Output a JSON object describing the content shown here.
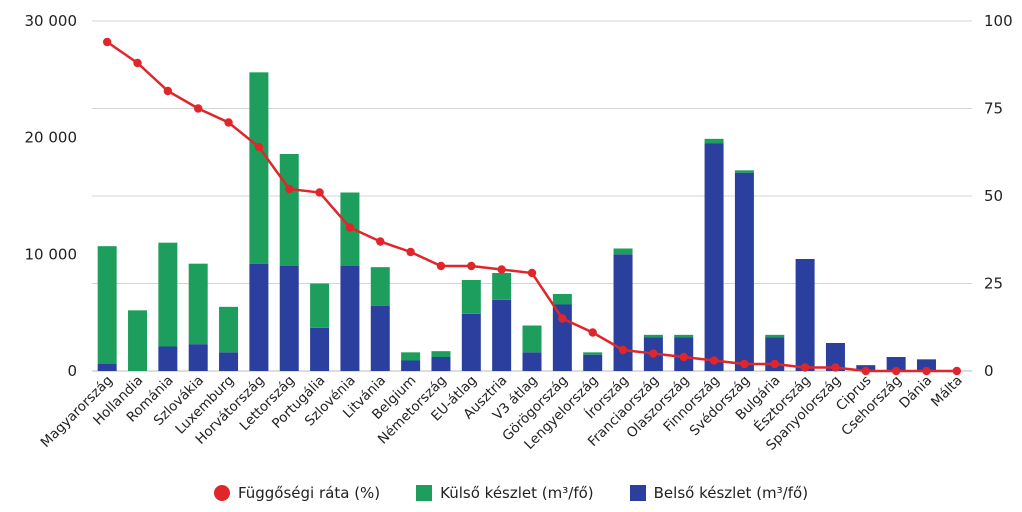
{
  "chart_data": {
    "type": "bar",
    "categories": [
      "Magyarország",
      "Hollandia",
      "Románia",
      "Szlovákia",
      "Luxemburg",
      "Horvátország",
      "Lettország",
      "Portugália",
      "Szlovénia",
      "Litvánia",
      "Belgium",
      "Németország",
      "EU-átlag",
      "Ausztria",
      "V3 átlag",
      "Görögország",
      "Lengyelország",
      "Írország",
      "Franciaország",
      "Olaszország",
      "Finnország",
      "Svédország",
      "Bulgária",
      "Észtország",
      "Spanyolország",
      "Ciprus",
      "Csehország",
      "Dánia",
      "Málta"
    ],
    "series": [
      {
        "name": "Belső készlet (m³/fő)",
        "kind": "bar",
        "axis": "left",
        "color": "#2b3f9e",
        "values": [
          600,
          0,
          2100,
          2300,
          1600,
          9200,
          9000,
          3700,
          9000,
          5600,
          900,
          1200,
          4900,
          6100,
          1600,
          5700,
          1400,
          10000,
          2900,
          2900,
          19500,
          17000,
          2900,
          9600,
          2400,
          500,
          1200,
          1000,
          0
        ]
      },
      {
        "name": "Külső készlet (m³/fő)",
        "kind": "bar",
        "axis": "left",
        "color": "#1e9e5c",
        "values": [
          10100,
          5200,
          8900,
          6900,
          3900,
          16400,
          9600,
          3800,
          6300,
          3300,
          700,
          500,
          2900,
          2300,
          2300,
          900,
          200,
          500,
          200,
          200,
          400,
          200,
          200,
          0,
          0,
          0,
          0,
          0,
          0
        ]
      },
      {
        "name": "Függőségi ráta (%)",
        "kind": "line",
        "axis": "right",
        "color": "#e0262a",
        "values": [
          94,
          88,
          80,
          75,
          71,
          64,
          52,
          51,
          41,
          37,
          34,
          30,
          30,
          29,
          28,
          15,
          11,
          6,
          5,
          4,
          3,
          2,
          2,
          1,
          1,
          0,
          0,
          0,
          0
        ]
      }
    ],
    "y_left": {
      "ticks": [
        "0",
        "10 000",
        "20 000",
        "30 000"
      ],
      "min": 0,
      "max": 30000
    },
    "y_right": {
      "ticks": [
        "0",
        "25",
        "50",
        "75",
        "100"
      ],
      "min": 0,
      "max": 100
    },
    "grid": true,
    "legend_position": "bottom"
  },
  "legend": {
    "items": [
      {
        "label": "Függőségi ráta (%)",
        "color": "#e0262a",
        "shape": "circle"
      },
      {
        "label": "Külső készlet (m³/fő)",
        "color": "#1e9e5c",
        "shape": "square"
      },
      {
        "label": "Belső készlet (m³/fő)",
        "color": "#2b3f9e",
        "shape": "square"
      }
    ]
  }
}
